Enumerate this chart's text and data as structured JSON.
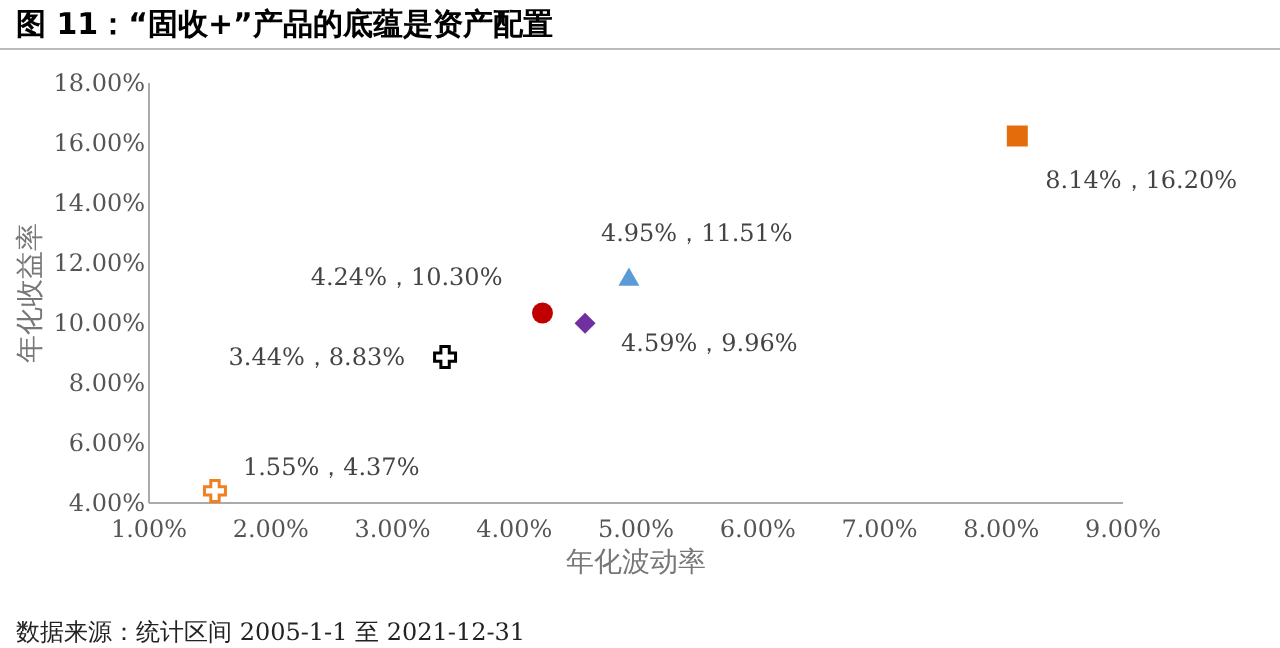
{
  "chart_data": {
    "type": "scatter",
    "title": "图 11：“固收+”产品的底蕴是资产配置",
    "xlabel": "年化波动率",
    "ylabel": "年化收益率",
    "annotations": [
      "数据来源：统计区间 2005-1-1 至 2021-12-31"
    ],
    "xlim": [
      1,
      9
    ],
    "xticks": [
      {
        "value": 1,
        "label": "1.00%"
      },
      {
        "value": 2,
        "label": "2.00%"
      },
      {
        "value": 3,
        "label": "3.00%"
      },
      {
        "value": 4,
        "label": "4.00%"
      },
      {
        "value": 5,
        "label": "5.00%"
      },
      {
        "value": 6,
        "label": "6.00%"
      },
      {
        "value": 7,
        "label": "7.00%"
      },
      {
        "value": 8,
        "label": "8.00%"
      },
      {
        "value": 9,
        "label": "9.00%"
      }
    ],
    "ylim": [
      4,
      18
    ],
    "yticks": [
      {
        "value": 4,
        "label": "4.00%"
      },
      {
        "value": 6,
        "label": "6.00%"
      },
      {
        "value": 8,
        "label": "8.00%"
      },
      {
        "value": 10,
        "label": "10.00%"
      },
      {
        "value": 12,
        "label": "12.00%"
      },
      {
        "value": 14,
        "label": "14.00%"
      },
      {
        "value": 16,
        "label": "16.00%"
      },
      {
        "value": 18,
        "label": "18.00%"
      }
    ],
    "grid": false,
    "series": [
      {
        "color": "#f08020",
        "marker": "cross",
        "x": [
          1.55
        ],
        "values": [
          4.37
        ],
        "value_labels": [
          "1.55%，4.37%"
        ]
      },
      {
        "color": "#000000",
        "marker": "cross",
        "x": [
          3.44
        ],
        "values": [
          8.83
        ],
        "value_labels": [
          "3.44%，8.83%"
        ]
      },
      {
        "color": "#c00000",
        "marker": "circle",
        "x": [
          4.24
        ],
        "values": [
          10.3
        ],
        "value_labels": [
          "4.24%，10.30%"
        ]
      },
      {
        "color": "#7030a0",
        "marker": "diamond",
        "x": [
          4.59
        ],
        "values": [
          9.96
        ],
        "value_labels": [
          "4.59%，9.96%"
        ]
      },
      {
        "color": "#5b9bd5",
        "marker": "triangle",
        "x": [
          4.95
        ],
        "values": [
          11.51
        ],
        "value_labels": [
          "4.95%，11.51%"
        ]
      },
      {
        "color": "#e46c0a",
        "marker": "square",
        "x": [
          8.14
        ],
        "values": [
          16.2
        ],
        "value_labels": [
          "8.14%，16.20%"
        ]
      }
    ]
  }
}
